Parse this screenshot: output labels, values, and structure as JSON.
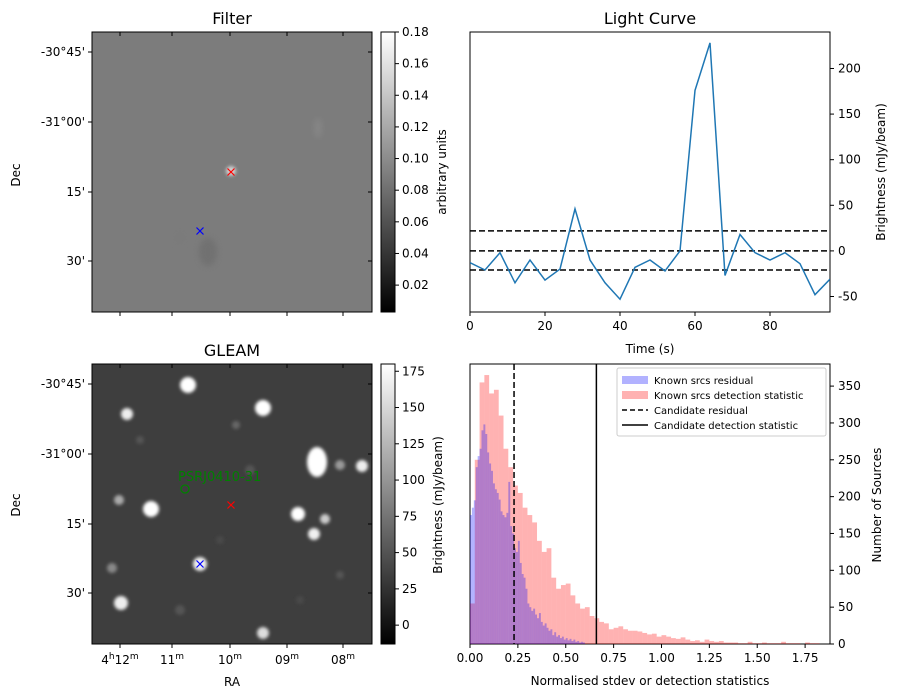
{
  "figure": {
    "width": 898,
    "height": 699
  },
  "chart_data": [
    {
      "id": "filter",
      "type": "heatmap",
      "title": "Filter",
      "ylabel": "Dec",
      "yticks": [
        "-30°45'",
        "-31°00'",
        "15'",
        "30'"
      ],
      "colorbar": {
        "label": "arbitrary units",
        "range": [
          0.003,
          0.18
        ],
        "ticks": [
          "0.02",
          "0.04",
          "0.06",
          "0.08",
          "0.10",
          "0.12",
          "0.14",
          "0.16",
          "0.18"
        ],
        "tick_values": [
          0.02,
          0.04,
          0.06,
          0.08,
          0.1,
          0.12,
          0.14,
          0.16,
          0.18
        ]
      },
      "markers": [
        {
          "name": "candidate",
          "symbol": "x",
          "color": "#ff0000"
        },
        {
          "name": "source",
          "symbol": "x",
          "color": "#0000ff"
        }
      ]
    },
    {
      "id": "light_curve",
      "type": "line",
      "title": "Light Curve",
      "xlabel": "Time (s)",
      "ylabel": "Brightness (mJy/beam)",
      "xlim": [
        0,
        96
      ],
      "ylim": [
        -67,
        240
      ],
      "xticks": [
        0,
        20,
        40,
        60,
        80
      ],
      "yticks": [
        -50,
        0,
        50,
        100,
        150,
        200
      ],
      "line_color": "#1f77b4",
      "x": [
        0,
        4,
        8,
        12,
        16,
        20,
        24,
        28,
        32,
        36,
        40,
        44,
        48,
        52,
        56,
        60,
        64,
        68,
        72,
        76,
        80,
        84,
        88,
        92,
        96
      ],
      "y": [
        -13,
        -21,
        -2,
        -35,
        -10,
        -32,
        -20,
        46,
        -10,
        -35,
        -53,
        -18,
        -10,
        -22,
        0,
        176,
        228,
        -27,
        18,
        -2,
        -10,
        -2,
        -14,
        -48,
        -31
      ],
      "hlines": [
        {
          "y": 22,
          "style": "dashed",
          "color": "#000000"
        },
        {
          "y": 0,
          "style": "dashed",
          "color": "#000000"
        },
        {
          "y": -21,
          "style": "dashed",
          "color": "#000000"
        }
      ]
    },
    {
      "id": "gleam",
      "type": "heatmap",
      "title": "GLEAM",
      "xlabel": "RA",
      "ylabel": "Dec",
      "xticks": [
        "4h12m",
        "11m",
        "10m",
        "09m",
        "08m"
      ],
      "yticks": [
        "-30°45'",
        "-31°00'",
        "15'",
        "30'"
      ],
      "colorbar": {
        "label": "Brightness (mJy/beam)",
        "range": [
          -13,
          180
        ],
        "ticks": [
          "0",
          "25",
          "50",
          "75",
          "100",
          "125",
          "150",
          "175"
        ],
        "tick_values": [
          0,
          25,
          50,
          75,
          100,
          125,
          150,
          175
        ]
      },
      "annotations": [
        {
          "text": "PSRJ0410-31",
          "color": "#008000"
        }
      ],
      "markers": [
        {
          "name": "candidate",
          "symbol": "x",
          "color": "#ff0000"
        },
        {
          "name": "source",
          "symbol": "x",
          "color": "#0000ff"
        },
        {
          "name": "PSRJ0410-31",
          "symbol": "o",
          "color": "#008000"
        }
      ]
    },
    {
      "id": "histogram",
      "type": "bar",
      "xlabel": "Normalised stdev or detection statistics",
      "ylabel": "Number of Sources",
      "xlim": [
        0,
        1.88
      ],
      "ylim": [
        0,
        380
      ],
      "xticks": [
        0.0,
        0.25,
        0.5,
        0.75,
        1.0,
        1.25,
        1.5,
        1.75
      ],
      "xtick_labels": [
        "0.00",
        "0.25",
        "0.50",
        "0.75",
        "1.00",
        "1.25",
        "1.50",
        "1.75"
      ],
      "yticks": [
        0,
        50,
        100,
        150,
        200,
        250,
        300,
        350
      ],
      "legend": {
        "position": "top-right",
        "entries": [
          {
            "label": "Known srcs residual",
            "kind": "patch",
            "color": "#0000ff",
            "alpha": 0.3
          },
          {
            "label": "Known srcs detection statistic",
            "kind": "patch",
            "color": "#ff0000",
            "alpha": 0.3
          },
          {
            "label": "Candidate residual",
            "kind": "dashed-line",
            "color": "#000000"
          },
          {
            "label": "Candidate detection statistic",
            "kind": "solid-line",
            "color": "#000000"
          }
        ]
      },
      "vlines": [
        {
          "x": 0.23,
          "style": "dashed",
          "color": "#000000"
        },
        {
          "x": 0.66,
          "style": "solid",
          "color": "#000000"
        }
      ],
      "series": [
        {
          "name": "Known srcs residual",
          "color": "#0000ff",
          "bin_start": 0.0,
          "bin_width": 0.01,
          "values": [
            175,
            185,
            195,
            240,
            255,
            265,
            290,
            298,
            285,
            260,
            245,
            235,
            218,
            210,
            205,
            196,
            180,
            175,
            172,
            178,
            220,
            160,
            150,
            130,
            125,
            140,
            110,
            95,
            90,
            75,
            55,
            50,
            45,
            48,
            40,
            35,
            42,
            30,
            25,
            28,
            22,
            18,
            20,
            12,
            16,
            10,
            12,
            8,
            10,
            6,
            8,
            5,
            7,
            4,
            6,
            3,
            4,
            2,
            3,
            2
          ]
        },
        {
          "name": "Known srcs detection statistic",
          "color": "#ff0000",
          "bin_start": 0.0,
          "bin_width": 0.025,
          "values": [
            55,
            250,
            355,
            365,
            340,
            345,
            310,
            265,
            240,
            215,
            205,
            185,
            175,
            165,
            140,
            125,
            130,
            90,
            75,
            80,
            82,
            66,
            55,
            48,
            50,
            38,
            35,
            30,
            28,
            20,
            22,
            24,
            20,
            18,
            18,
            17,
            15,
            13,
            14,
            10,
            12,
            10,
            8,
            7,
            9,
            6,
            4,
            5,
            3,
            6,
            4,
            3,
            4,
            2,
            2,
            2,
            1,
            1,
            3,
            1,
            1,
            2,
            1,
            1,
            1,
            3,
            1,
            1,
            1,
            0,
            2,
            1,
            1,
            0,
            0
          ]
        }
      ]
    }
  ]
}
